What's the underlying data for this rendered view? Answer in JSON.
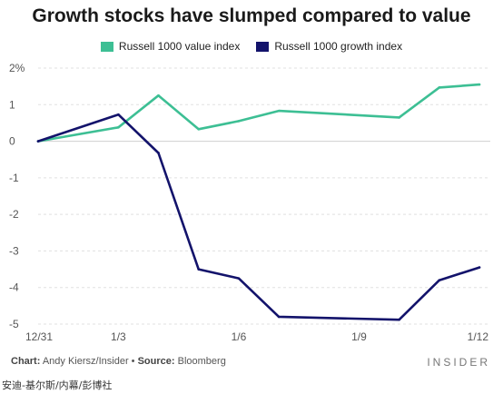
{
  "chart_data": {
    "type": "line",
    "title": "Growth stocks have slumped compared to value",
    "x_tick_labels": [
      "12/31",
      "1/3",
      "1/6",
      "1/9",
      "1/12"
    ],
    "x": [
      "12/31",
      "1/2",
      "1/3",
      "1/4",
      "1/5",
      "1/6",
      "1/7",
      "1/8",
      "1/9",
      "1/10",
      "1/11",
      "1/12"
    ],
    "series": [
      {
        "name": "Russell 1000 value index",
        "color": "#3dbf94",
        "values": [
          0,
          null,
          0.38,
          1.25,
          0.33,
          0.55,
          0.83,
          null,
          null,
          0.65,
          1.47,
          1.55
        ]
      },
      {
        "name": "Russell 1000 growth index",
        "color": "#13136b",
        "values": [
          0,
          null,
          0.73,
          -0.32,
          -3.5,
          -3.75,
          -4.8,
          null,
          null,
          -4.88,
          -3.8,
          -3.45
        ]
      }
    ],
    "y_tick_labels": [
      "2%",
      "1",
      "0",
      "-1",
      "-2",
      "-3",
      "-4",
      "-5"
    ],
    "ylim": [
      -5,
      2
    ],
    "grid": true,
    "legend_position": "top-center"
  },
  "footer": {
    "chart_label": "Chart:",
    "chart_credit": "Andy Kiersz/Insider",
    "separator": "•",
    "source_label": "Source:",
    "source_name": "Bloomberg"
  },
  "brand": "INSIDER",
  "watermark": "安迪-基尔斯/内幕/彭博社"
}
